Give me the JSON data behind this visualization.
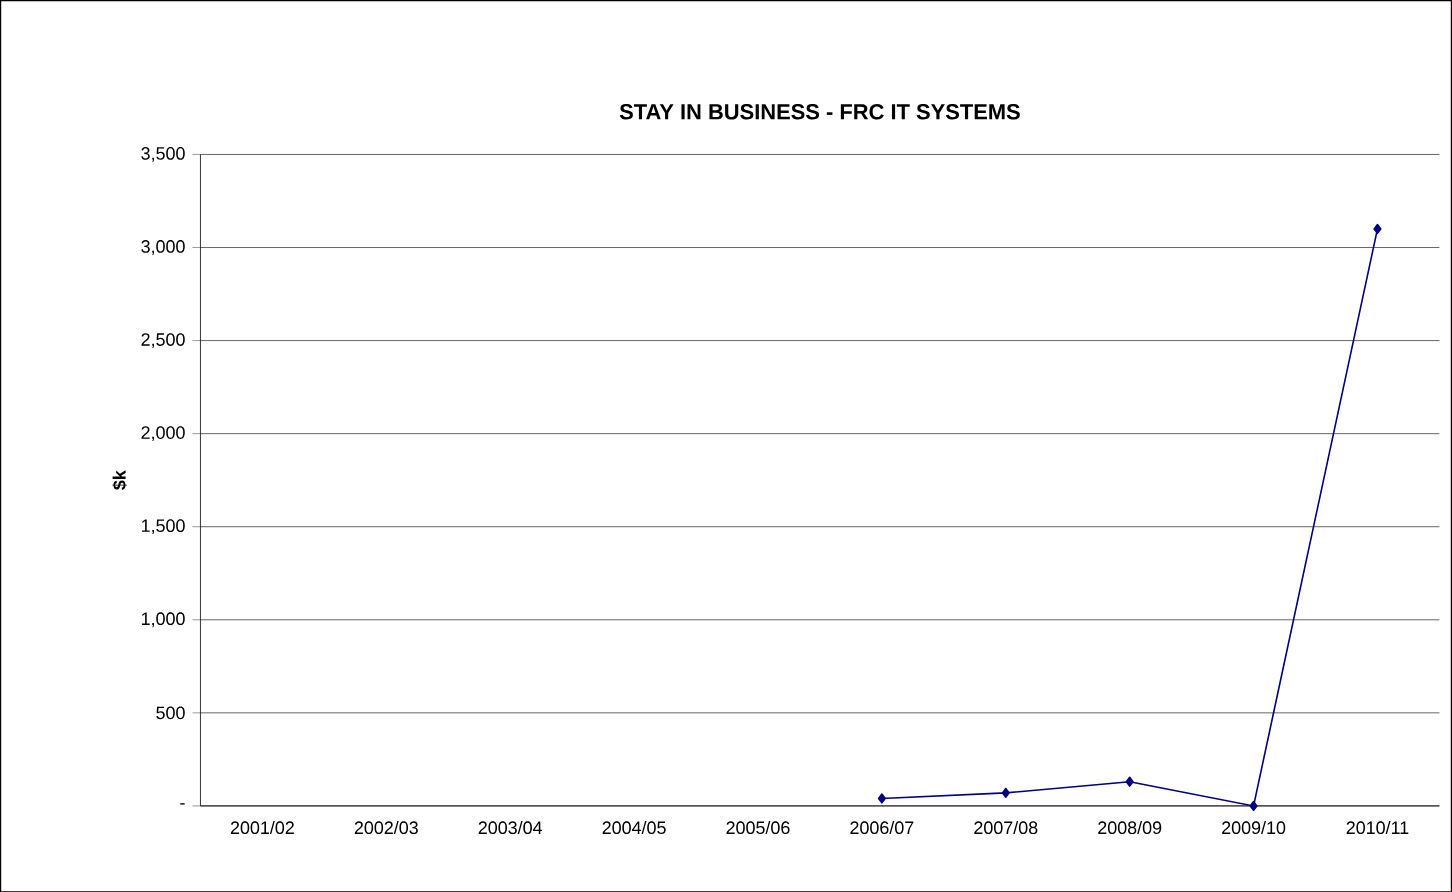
{
  "chart_data": {
    "type": "line",
    "title": "STAY IN BUSINESS - FRC IT SYSTEMS",
    "ylabel": "$k",
    "categories": [
      "2001/02",
      "2002/03",
      "2003/04",
      "2004/05",
      "2005/06",
      "2006/07",
      "2007/08",
      "2008/09",
      "2009/10",
      "2010/11"
    ],
    "series": [
      {
        "color": "#000080",
        "values": [
          null,
          null,
          null,
          null,
          null,
          40,
          70,
          130,
          0,
          3100
        ]
      }
    ],
    "ylim": [
      0,
      3500
    ],
    "yticks": [
      {
        "value": 0,
        "label": "-"
      },
      500,
      {
        "value": 1000,
        "label": "1,000"
      },
      {
        "value": 1500,
        "label": "1,500"
      },
      {
        "value": 2000,
        "label": "2,000"
      },
      {
        "value": 2500,
        "label": "2,500"
      },
      {
        "value": 3000,
        "label": "3,000"
      },
      {
        "value": 3500,
        "label": "3,500"
      }
    ],
    "grid": "y",
    "marker": "diamond",
    "line_style": "solid"
  }
}
